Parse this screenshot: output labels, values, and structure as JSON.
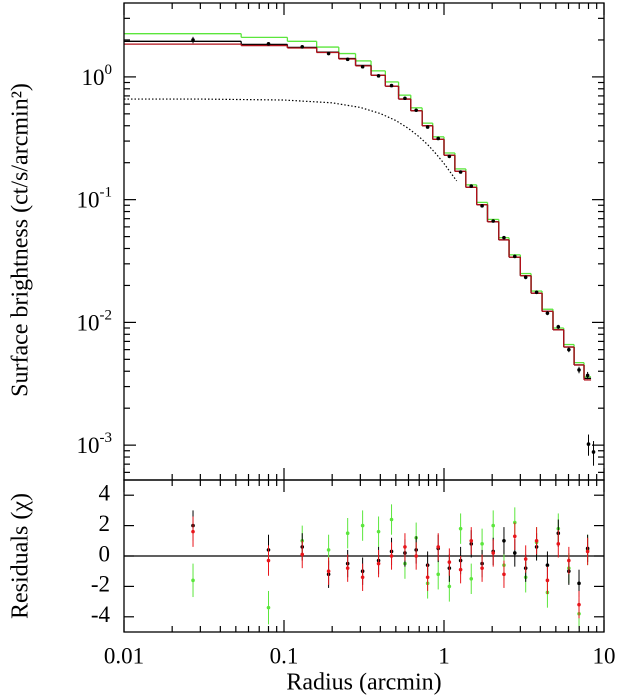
{
  "chart_data": [
    {
      "type": "step",
      "ylabel": "Surface brightness (ct/s/arcmin²)",
      "xscale": "log",
      "yscale": "log",
      "xlim": [
        0.01,
        10
      ],
      "ylim": [
        0.00052,
        4
      ],
      "yticks": [
        {
          "value": 0.001,
          "label": "10",
          "exponent": "-3"
        },
        {
          "value": 0.01,
          "label": "10",
          "exponent": "-2"
        },
        {
          "value": 0.1,
          "label": "10",
          "exponent": "-1"
        },
        {
          "value": 1,
          "label": "10",
          "exponent": "0"
        }
      ],
      "yminorticks": [
        0.0006,
        0.0007,
        0.0008,
        0.0009,
        0.002,
        0.003,
        0.004,
        0.005,
        0.006,
        0.007,
        0.008,
        0.009,
        0.02,
        0.03,
        0.04,
        0.05,
        0.06,
        0.07,
        0.08,
        0.09,
        0.2,
        0.3,
        0.4,
        0.5,
        0.6,
        0.7,
        0.8,
        0.9,
        2,
        3
      ],
      "xminorticks": [
        0.02,
        0.03,
        0.04,
        0.05,
        0.06,
        0.07,
        0.08,
        0.09,
        0.2,
        0.3,
        0.4,
        0.5,
        0.6,
        0.7,
        0.8,
        0.9,
        2,
        3,
        4,
        5,
        6,
        7,
        8,
        9
      ],
      "bin_edges": [
        0.01,
        0.054,
        0.105,
        0.16,
        0.22,
        0.28,
        0.35,
        0.43,
        0.52,
        0.62,
        0.73,
        0.85,
        1.0,
        1.17,
        1.37,
        1.6,
        1.87,
        2.2,
        2.55,
        3.0,
        3.5,
        4.1,
        4.8,
        5.6,
        6.5,
        7.5,
        8.3
      ],
      "models": [
        {
          "color": "#5be63c",
          "values": [
            2.25,
            2.1,
            1.95,
            1.75,
            1.55,
            1.35,
            1.12,
            0.91,
            0.71,
            0.56,
            0.42,
            0.325,
            0.24,
            0.178,
            0.132,
            0.095,
            0.069,
            0.049,
            0.0355,
            0.025,
            0.018,
            0.0128,
            0.009,
            0.0066,
            0.0047,
            0.0036
          ]
        },
        {
          "color": "#000000",
          "values": [
            1.95,
            1.84,
            1.74,
            1.59,
            1.41,
            1.24,
            1.03,
            0.84,
            0.66,
            0.53,
            0.4,
            0.31,
            0.23,
            0.17,
            0.126,
            0.091,
            0.066,
            0.047,
            0.034,
            0.024,
            0.0173,
            0.0123,
            0.0087,
            0.0063,
            0.0045,
            0.0035
          ]
        },
        {
          "color": "#b0101a",
          "values": [
            1.85,
            1.8,
            1.72,
            1.58,
            1.4,
            1.23,
            1.03,
            0.84,
            0.66,
            0.53,
            0.4,
            0.31,
            0.23,
            0.17,
            0.126,
            0.091,
            0.066,
            0.047,
            0.034,
            0.024,
            0.0173,
            0.0123,
            0.0087,
            0.0063,
            0.0045,
            0.0034
          ]
        }
      ],
      "component": {
        "color": "#000000",
        "style": "dotted",
        "x": [
          0.01,
          0.03,
          0.1,
          0.2,
          0.3,
          0.4,
          0.5,
          0.6,
          0.7,
          0.8,
          0.9,
          1.0,
          1.2
        ],
        "values": [
          0.66,
          0.66,
          0.648,
          0.615,
          0.564,
          0.503,
          0.441,
          0.38,
          0.325,
          0.276,
          0.233,
          0.197,
          0.142
        ]
      },
      "points": {
        "color": "#000000",
        "x": [
          0.027,
          0.08,
          0.13,
          0.19,
          0.25,
          0.31,
          0.39,
          0.47,
          0.57,
          0.67,
          0.79,
          0.92,
          1.08,
          1.27,
          1.48,
          1.73,
          2.03,
          2.37,
          2.77,
          3.24,
          3.79,
          4.43,
          5.18,
          6.03,
          6.98,
          7.9,
          8.0,
          8.6
        ],
        "values": [
          2.0,
          1.86,
          1.76,
          1.55,
          1.39,
          1.21,
          1.02,
          0.85,
          0.67,
          0.535,
          0.39,
          0.315,
          0.225,
          0.168,
          0.129,
          0.089,
          0.067,
          0.049,
          0.0345,
          0.0233,
          0.0176,
          0.0119,
          0.0092,
          0.006,
          0.0041,
          0.0037,
          0.00102,
          0.00088
        ],
        "errors": [
          0.12,
          0.05,
          0.05,
          0.04,
          0.035,
          0.03,
          0.025,
          0.02,
          0.017,
          0.013,
          0.01,
          0.008,
          0.006,
          0.0045,
          0.0035,
          0.0025,
          0.002,
          0.0015,
          0.0011,
          0.0008,
          0.0006,
          0.00045,
          0.00035,
          0.00028,
          0.00025,
          0.00025,
          0.0002,
          0.0002
        ]
      }
    },
    {
      "type": "scatter",
      "xlabel": "Radius (arcmin)",
      "ylabel": "Residuals (χ)",
      "xscale": "log",
      "xlim": [
        0.01,
        10
      ],
      "ylim": [
        -5,
        5
      ],
      "xticks": [
        0.01,
        0.1,
        1,
        10
      ],
      "yticks": [
        -4,
        -2,
        0,
        2,
        4
      ],
      "hline": 0,
      "x": [
        0.027,
        0.08,
        0.13,
        0.19,
        0.25,
        0.31,
        0.39,
        0.47,
        0.57,
        0.67,
        0.79,
        0.92,
        1.08,
        1.27,
        1.48,
        1.73,
        2.03,
        2.37,
        2.77,
        3.24,
        3.79,
        4.43,
        5.18,
        6.03,
        6.98,
        7.9
      ],
      "series": [
        {
          "color": "#5be63c",
          "values": [
            -1.6,
            -3.4,
            1.0,
            0.4,
            1.5,
            2.0,
            1.6,
            2.4,
            -0.5,
            1.2,
            -1.8,
            -1.2,
            -2.0,
            1.8,
            -1.5,
            0.8,
            2.0,
            -0.6,
            2.2,
            -1.4,
            0.9,
            -2.4,
            1.8,
            -0.8,
            -3.8,
            0.4
          ],
          "errors": [
            1.1,
            1.1,
            1.0,
            1.0,
            1.0,
            1.0,
            1.0,
            1.0,
            1.0,
            1.0,
            1.0,
            1.0,
            1.0,
            1.0,
            1.0,
            1.0,
            1.0,
            1.0,
            1.0,
            1.0,
            1.0,
            1.0,
            1.0,
            1.0,
            1.0,
            1.0
          ]
        },
        {
          "color": "#000000",
          "values": [
            2.0,
            0.4,
            0.6,
            -1.2,
            -0.5,
            -1.0,
            -0.3,
            0.3,
            0.2,
            0.4,
            -0.6,
            0.5,
            -0.8,
            -0.3,
            0.8,
            -0.5,
            0.3,
            1.0,
            0.2,
            -0.8,
            0.6,
            -0.6,
            1.5,
            -1.0,
            -1.8,
            0.5
          ],
          "errors": [
            1.0,
            1.0,
            0.9,
            0.9,
            0.9,
            0.9,
            0.9,
            0.9,
            0.9,
            0.9,
            0.9,
            0.9,
            0.9,
            0.9,
            0.9,
            0.9,
            0.9,
            0.9,
            0.9,
            0.9,
            0.9,
            0.9,
            0.9,
            0.9,
            0.9,
            0.9
          ]
        },
        {
          "color": "#e8151b",
          "values": [
            1.6,
            -0.3,
            0.1,
            -1.0,
            -0.8,
            -1.4,
            -0.5,
            0.0,
            0.6,
            0.0,
            -1.4,
            0.6,
            -0.4,
            -0.9,
            1.0,
            -0.8,
            0.2,
            -1.2,
            1.3,
            -0.2,
            1.0,
            -1.6,
            0.8,
            -0.3,
            -3.2,
            0.3
          ],
          "errors": [
            1.0,
            1.0,
            0.9,
            0.9,
            0.9,
            0.9,
            0.9,
            0.9,
            0.9,
            0.9,
            0.9,
            0.9,
            0.9,
            0.9,
            0.9,
            0.9,
            0.9,
            0.9,
            0.9,
            0.9,
            0.9,
            0.9,
            0.9,
            0.9,
            0.9,
            0.9
          ]
        }
      ]
    }
  ]
}
